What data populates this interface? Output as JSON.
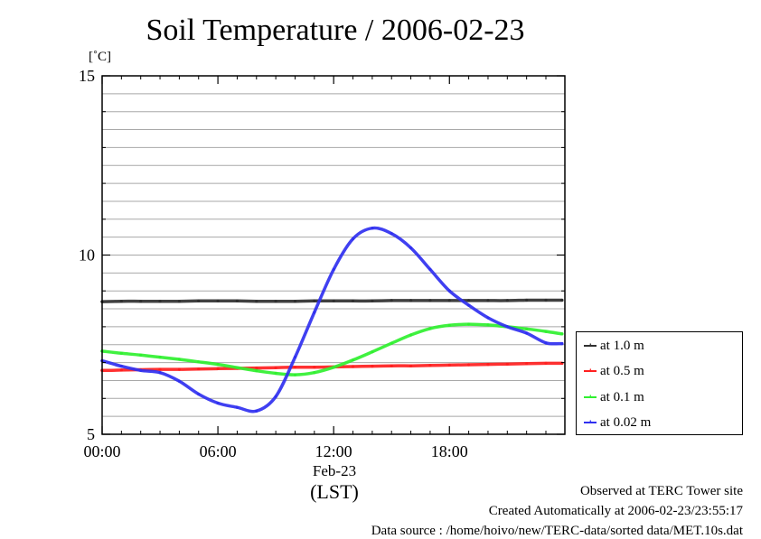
{
  "chart_data": {
    "type": "line",
    "title": "Soil Temperature / 2006-02-23",
    "ylabel": "[˚C]",
    "xlabel": "(LST)",
    "x_date_label": "Feb-23",
    "xlim": [
      "00:00",
      "23:59"
    ],
    "ylim": [
      5,
      15
    ],
    "yticks": [
      5,
      10,
      15
    ],
    "ygrid": [
      5.5,
      6,
      6.5,
      7,
      7.5,
      8,
      8.5,
      9,
      9.5,
      10,
      10.5,
      11,
      11.5,
      12,
      12.5,
      13,
      13.5,
      14,
      14.5,
      15
    ],
    "xticks": [
      "00:00",
      "06:00",
      "12:00",
      "18:00"
    ],
    "x": [
      "00:00",
      "01:00",
      "02:00",
      "03:00",
      "04:00",
      "05:00",
      "06:00",
      "07:00",
      "08:00",
      "09:00",
      "10:00",
      "11:00",
      "12:00",
      "13:00",
      "14:00",
      "15:00",
      "16:00",
      "17:00",
      "18:00",
      "19:00",
      "20:00",
      "21:00",
      "22:00",
      "23:00",
      "23:50"
    ],
    "grid": true,
    "legend_position": "right",
    "series": [
      {
        "name": "at 1.0 m",
        "color": "#303030",
        "values": [
          8.7,
          8.71,
          8.71,
          8.71,
          8.71,
          8.72,
          8.72,
          8.72,
          8.71,
          8.71,
          8.71,
          8.72,
          8.72,
          8.72,
          8.72,
          8.73,
          8.73,
          8.73,
          8.73,
          8.73,
          8.73,
          8.73,
          8.74,
          8.74,
          8.74
        ]
      },
      {
        "name": "at 0.5 m",
        "color": "#ff2020",
        "values": [
          6.78,
          6.79,
          6.8,
          6.81,
          6.81,
          6.82,
          6.83,
          6.84,
          6.85,
          6.86,
          6.87,
          6.87,
          6.88,
          6.89,
          6.9,
          6.91,
          6.91,
          6.92,
          6.93,
          6.94,
          6.95,
          6.96,
          6.97,
          6.98,
          6.98
        ]
      },
      {
        "name": "at 0.1 m",
        "color": "#30f030",
        "values": [
          7.32,
          7.26,
          7.21,
          7.15,
          7.09,
          7.02,
          6.95,
          6.86,
          6.77,
          6.7,
          6.66,
          6.72,
          6.87,
          7.07,
          7.3,
          7.54,
          7.77,
          7.95,
          8.04,
          8.07,
          8.05,
          8.0,
          7.94,
          7.87,
          7.8
        ]
      },
      {
        "name": "at 0.02 m",
        "color": "#3030f0",
        "values": [
          7.05,
          6.9,
          6.78,
          6.72,
          6.48,
          6.12,
          5.87,
          5.75,
          5.65,
          6.05,
          7.15,
          8.4,
          9.6,
          10.45,
          10.75,
          10.6,
          10.2,
          9.6,
          9.0,
          8.6,
          8.25,
          8.0,
          7.82,
          7.55,
          7.53
        ]
      }
    ]
  },
  "footer": {
    "observed": "Observed at TERC Tower site",
    "created": "Created Automatically at 2006-02-23/23:55:17",
    "source": "Data source : /home/hoivo/new/TERC-data/sorted  data/MET.10s.dat"
  }
}
